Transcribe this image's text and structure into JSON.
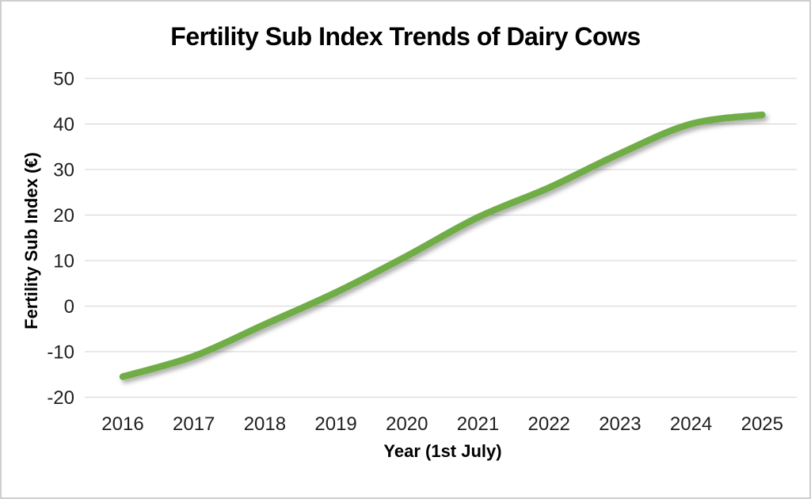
{
  "chart_data": {
    "type": "line",
    "title": "Fertility Sub Index Trends of Dairy Cows",
    "xlabel": "Year (1st July)",
    "ylabel": "Fertility Sub Index (€)",
    "categories": [
      2016,
      2017,
      2018,
      2019,
      2020,
      2021,
      2022,
      2023,
      2024,
      2025
    ],
    "series": [
      {
        "name": "Fertility Sub Index",
        "values": [
          -15.5,
          -11,
          -4,
          3,
          11,
          19.5,
          26,
          33.5,
          40,
          42
        ]
      }
    ],
    "ylim": [
      -20,
      50
    ],
    "yticks": [
      50,
      40,
      30,
      20,
      10,
      0,
      -10,
      -20
    ],
    "grid": true,
    "legend": false,
    "smooth_line": true,
    "colors": {
      "line": "#70AD47",
      "gridline": "#D9D9D9",
      "background": "#FFFFFF",
      "page_border": "#CFCFCF",
      "tick_text": "#1f1f1f",
      "title_text": "#000000"
    }
  }
}
